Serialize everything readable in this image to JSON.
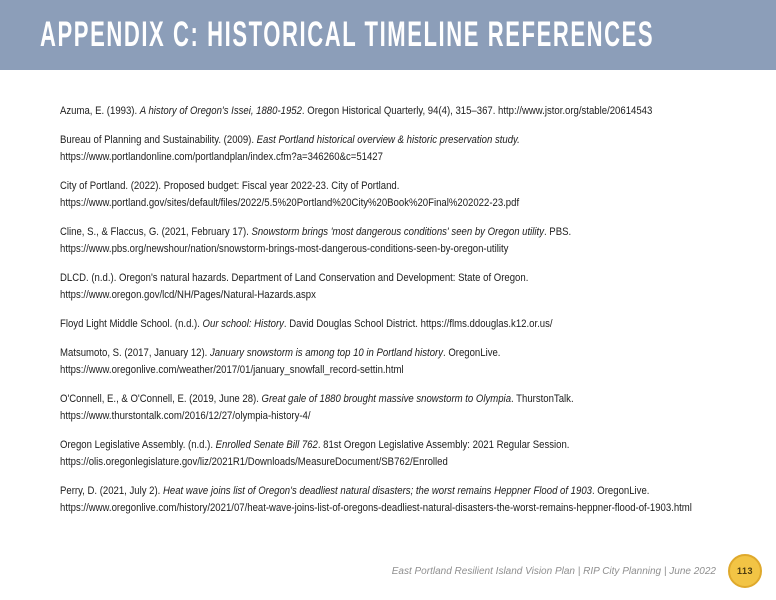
{
  "colors": {
    "header_bg": "#8C9EB9",
    "title_color": "#FFFFFF",
    "body_text": "#1D1D1D",
    "footer_text": "#8F8F8F",
    "badge_fill": "#F2C445",
    "badge_border": "#DFA92C",
    "badge_text": "#4A3A10"
  },
  "header": {
    "title": "APPENDIX C: HISTORICAL TIMELINE REFERENCES"
  },
  "references": [
    {
      "segments": [
        {
          "t": "Azuma, E. (1993). ",
          "i": false
        },
        {
          "t": "A history of Oregon's Issei, 1880-1952",
          "i": true
        },
        {
          "t": ". Oregon Historical Quarterly, 94(4), 315–367. http://www.jstor.org/stable/20614543",
          "i": false
        }
      ]
    },
    {
      "segments": [
        {
          "t": "Bureau of Planning and Sustainability. (2009). ",
          "i": false
        },
        {
          "t": "East Portland historical overview & historic preservation study.",
          "i": true
        },
        {
          "br": true
        },
        {
          "t": "https://www.portlandonline.com/portlandplan/index.cfm?a=346260&c=51427",
          "i": false
        }
      ]
    },
    {
      "segments": [
        {
          "t": "City of Portland. (2022). Proposed budget: Fiscal year 2022-23. City of Portland.",
          "i": false
        },
        {
          "br": true
        },
        {
          "t": "https://www.portland.gov/sites/default/files/2022/5.5%20Portland%20City%20Book%20Final%202022-23.pdf",
          "i": false
        }
      ]
    },
    {
      "segments": [
        {
          "t": "Cline, S., & Flaccus, G. (2021, February 17). ",
          "i": false
        },
        {
          "t": "Snowstorm brings 'most dangerous conditions' seen by Oregon utility",
          "i": true
        },
        {
          "t": ". PBS.",
          "i": false
        },
        {
          "br": true
        },
        {
          "t": "https://www.pbs.org/newshour/nation/snowstorm-brings-most-dangerous-conditions-seen-by-oregon-utility",
          "i": false
        }
      ]
    },
    {
      "segments": [
        {
          "t": "DLCD. (n.d.). Oregon's natural hazards. Department of Land Conservation and Development: State of Oregon.",
          "i": false
        },
        {
          "br": true
        },
        {
          "t": "https://www.oregon.gov/lcd/NH/Pages/Natural-Hazards.aspx",
          "i": false
        }
      ]
    },
    {
      "segments": [
        {
          "t": "Floyd Light Middle School. (n.d.). ",
          "i": false
        },
        {
          "t": "Our school: History",
          "i": true
        },
        {
          "t": ". David Douglas School District. https://flms.ddouglas.k12.or.us/",
          "i": false
        }
      ]
    },
    {
      "segments": [
        {
          "t": "Matsumoto, S. (2017, January 12). ",
          "i": false
        },
        {
          "t": "January snowstorm is among top 10 in Portland history",
          "i": true
        },
        {
          "t": ". OregonLive.",
          "i": false
        },
        {
          "br": true
        },
        {
          "t": "https://www.oregonlive.com/weather/2017/01/january_snowfall_record-settin.html",
          "i": false
        }
      ]
    },
    {
      "segments": [
        {
          "t": "O'Connell, E., & O'Connell, E. (2019, June 28). ",
          "i": false
        },
        {
          "t": "Great gale of 1880 brought massive snowstorm to Olympia",
          "i": true
        },
        {
          "t": ". ThurstonTalk.",
          "i": false
        },
        {
          "br": true
        },
        {
          "t": "https://www.thurstontalk.com/2016/12/27/olympia-history-4/",
          "i": false
        }
      ]
    },
    {
      "segments": [
        {
          "t": "Oregon Legislative Assembly. (n.d.). ",
          "i": false
        },
        {
          "t": "Enrolled Senate Bill 762",
          "i": true
        },
        {
          "t": ". 81st Oregon Legislative Assembly: 2021 Regular Session.",
          "i": false
        },
        {
          "br": true
        },
        {
          "t": "https://olis.oregonlegislature.gov/liz/2021R1/Downloads/MeasureDocument/SB762/Enrolled",
          "i": false
        }
      ]
    },
    {
      "segments": [
        {
          "t": "Perry, D. (2021, July 2). ",
          "i": false
        },
        {
          "t": "Heat wave joins list of Oregon's deadliest natural disasters; the worst remains Heppner Flood of 1903",
          "i": true
        },
        {
          "t": ". OregonLive.",
          "i": false
        },
        {
          "br": true
        },
        {
          "t": "https://www.oregonlive.com/history/2021/07/heat-wave-joins-list-of-oregons-deadliest-natural-disasters-the-worst-remains-heppner-flood-of-1903.html",
          "i": false
        }
      ]
    }
  ],
  "footer": {
    "text": "East Portland Resilient Island Vision Plan  |  RIP City Planning  |  June 2022",
    "page_number": "113"
  }
}
